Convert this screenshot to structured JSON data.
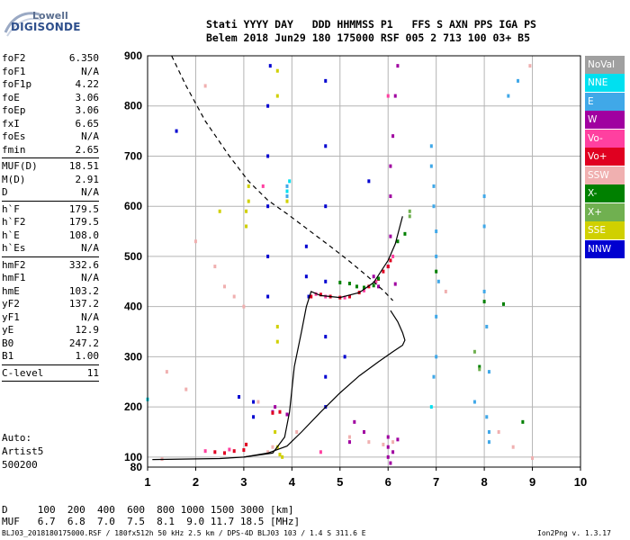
{
  "logo": {
    "line1": "Lowell",
    "line2": "DIGISONDE"
  },
  "header": {
    "line1": "Stati YYYY DAY   DDD HHMMSS P1   FFS S AXN PPS IGA PS",
    "line2": "Belem 2018 Jun29 180 175000 RSF 005 2 713 100 03+ B5"
  },
  "params": [
    {
      "name": "foF2",
      "value": "6.350"
    },
    {
      "name": "foF1",
      "value": "N/A"
    },
    {
      "name": "foF1p",
      "value": "4.22"
    },
    {
      "name": "foE",
      "value": "3.06"
    },
    {
      "name": "foEp",
      "value": "3.06"
    },
    {
      "name": "fxI",
      "value": "6.65"
    },
    {
      "name": "foEs",
      "value": "N/A"
    },
    {
      "name": "fmin",
      "value": "2.65"
    },
    {
      "sep": true
    },
    {
      "name": "MUF(D)",
      "value": "18.51"
    },
    {
      "name": "M(D)",
      "value": "2.91"
    },
    {
      "name": "D",
      "value": "N/A"
    },
    {
      "sep": true
    },
    {
      "name": "h`F",
      "value": "179.5"
    },
    {
      "name": "h`F2",
      "value": "179.5"
    },
    {
      "name": "h`E",
      "value": "108.0"
    },
    {
      "name": "h`Es",
      "value": "N/A"
    },
    {
      "sep": true
    },
    {
      "name": "hmF2",
      "value": "332.6"
    },
    {
      "name": "hmF1",
      "value": "N/A"
    },
    {
      "name": "hmE",
      "value": "103.2"
    },
    {
      "name": "yF2",
      "value": "137.2"
    },
    {
      "name": "yF1",
      "value": "N/A"
    },
    {
      "name": "yE",
      "value": "12.9"
    },
    {
      "name": "B0",
      "value": "247.2"
    },
    {
      "name": "B1",
      "value": "1.00"
    },
    {
      "sep": true
    },
    {
      "name": "C-level",
      "value": "11"
    },
    {
      "sep": true
    }
  ],
  "auto": {
    "line1": "Auto:",
    "line2": "Artist5",
    "line3": "500200"
  },
  "footer": {
    "row1": "D     100  200  400  600  800 1000 1500 3000 [km]",
    "row2": "MUF   6.7  6.8  7.0  7.5  8.1  9.0 11.7 18.5 [MHz]",
    "file": "BLJ03_2018180175000.RSF / 180fx512h 50 kHz 2.5 km / DPS-4D BLJ03 103 / 1.4 S 311.6 E",
    "version": "Ion2Png v. 1.3.17"
  },
  "legend": [
    {
      "label": "NoVal",
      "color": "#a0a0a0"
    },
    {
      "label": "NNE",
      "color": "#00e0f0"
    },
    {
      "label": "E",
      "color": "#40a8e8"
    },
    {
      "label": "W",
      "color": "#a000a0"
    },
    {
      "label": "Vo-",
      "color": "#ff40a0"
    },
    {
      "label": "Vo+",
      "color": "#e00020"
    },
    {
      "label": "SSW",
      "color": "#f0b0b0"
    },
    {
      "label": "X-",
      "color": "#008000"
    },
    {
      "label": "X+",
      "color": "#70b050"
    },
    {
      "label": "SSE",
      "color": "#d0d000"
    },
    {
      "label": "NNW",
      "color": "#0000d0"
    }
  ],
  "chart_data": {
    "type": "scatter",
    "title": "",
    "xlabel": "",
    "ylabel": "",
    "xlim": [
      1,
      10
    ],
    "ylim": [
      80,
      900
    ],
    "x_ticks": [
      "1",
      "2",
      "3",
      "4",
      "5",
      "6",
      "7",
      "8",
      "9",
      "10"
    ],
    "y_ticks": [
      "80",
      "100",
      "200",
      "300",
      "400",
      "500",
      "600",
      "700",
      "800",
      "900"
    ],
    "grid": true,
    "series": [
      {
        "name": "profile",
        "style": "solid-line",
        "points": [
          [
            1.1,
            95
          ],
          [
            2.5,
            97
          ],
          [
            3.0,
            100
          ],
          [
            3.5,
            108
          ],
          [
            3.9,
            122
          ],
          [
            4.2,
            150
          ],
          [
            4.6,
            190
          ],
          [
            5.0,
            228
          ],
          [
            5.4,
            262
          ],
          [
            5.8,
            290
          ],
          [
            6.1,
            310
          ],
          [
            6.3,
            323
          ],
          [
            6.35,
            333
          ],
          [
            6.3,
            348
          ],
          [
            6.2,
            370
          ],
          [
            6.05,
            392
          ]
        ]
      },
      {
        "name": "virtual-trace",
        "style": "solid-line",
        "points": [
          [
            3.0,
            100
          ],
          [
            3.6,
            108
          ],
          [
            3.85,
            140
          ],
          [
            3.95,
            190
          ],
          [
            4.05,
            280
          ],
          [
            4.2,
            350
          ],
          [
            4.3,
            400
          ],
          [
            4.4,
            430
          ],
          [
            4.6,
            422
          ],
          [
            5.0,
            418
          ],
          [
            5.4,
            428
          ],
          [
            5.7,
            448
          ],
          [
            6.0,
            492
          ],
          [
            6.15,
            525
          ],
          [
            6.3,
            580
          ]
        ]
      },
      {
        "name": "MUF-curve",
        "style": "dashed-line",
        "points": [
          [
            1.5,
            900
          ],
          [
            1.8,
            840
          ],
          [
            2.2,
            770
          ],
          [
            2.7,
            700
          ],
          [
            3.1,
            650
          ],
          [
            3.5,
            612
          ],
          [
            3.9,
            585
          ],
          [
            4.3,
            556
          ],
          [
            4.8,
            520
          ],
          [
            5.2,
            490
          ],
          [
            5.6,
            458
          ],
          [
            5.9,
            432
          ],
          [
            6.1,
            412
          ]
        ]
      },
      {
        "name": "NNW",
        "color": "#0000d0",
        "points": [
          [
            3.5,
            420
          ],
          [
            3.5,
            500
          ],
          [
            3.5,
            600
          ],
          [
            3.5,
            700
          ],
          [
            3.5,
            800
          ],
          [
            3.55,
            880
          ],
          [
            4.7,
            200
          ],
          [
            4.7,
            260
          ],
          [
            4.7,
            340
          ],
          [
            4.7,
            450
          ],
          [
            4.7,
            600
          ],
          [
            4.7,
            720
          ],
          [
            4.7,
            850
          ],
          [
            4.3,
            460
          ],
          [
            4.3,
            520
          ],
          [
            4.35,
            420
          ],
          [
            3.2,
            180
          ],
          [
            3.2,
            210
          ],
          [
            2.9,
            220
          ],
          [
            1.6,
            750
          ],
          [
            5.6,
            650
          ],
          [
            5.1,
            300
          ]
        ]
      },
      {
        "name": "W",
        "color": "#a000a0",
        "points": [
          [
            6.0,
            480
          ],
          [
            6.05,
            540
          ],
          [
            6.05,
            620
          ],
          [
            6.05,
            680
          ],
          [
            6.1,
            740
          ],
          [
            6.15,
            820
          ],
          [
            6.2,
            880
          ],
          [
            6.0,
            140
          ],
          [
            6.0,
            120
          ],
          [
            6.0,
            100
          ],
          [
            6.05,
            88
          ],
          [
            6.1,
            110
          ],
          [
            6.2,
            135
          ],
          [
            3.65,
            200
          ],
          [
            3.6,
            190
          ],
          [
            3.9,
            185
          ],
          [
            5.3,
            170
          ],
          [
            5.5,
            150
          ],
          [
            5.2,
            130
          ],
          [
            5.7,
            460
          ],
          [
            5.8,
            440
          ],
          [
            6.15,
            445
          ]
        ]
      },
      {
        "name": "E",
        "color": "#40a8e8",
        "points": [
          [
            6.9,
            720
          ],
          [
            6.9,
            680
          ],
          [
            6.95,
            640
          ],
          [
            6.95,
            600
          ],
          [
            7.0,
            550
          ],
          [
            7.0,
            500
          ],
          [
            7.05,
            450
          ],
          [
            7.0,
            380
          ],
          [
            7.0,
            300
          ],
          [
            6.95,
            260
          ],
          [
            8.0,
            620
          ],
          [
            8.0,
            560
          ],
          [
            8.0,
            430
          ],
          [
            8.05,
            360
          ],
          [
            8.1,
            270
          ],
          [
            8.05,
            180
          ],
          [
            8.1,
            150
          ],
          [
            8.1,
            130
          ],
          [
            7.8,
            210
          ],
          [
            8.5,
            820
          ],
          [
            8.7,
            850
          ],
          [
            3.9,
            620
          ],
          [
            3.9,
            640
          ]
        ]
      },
      {
        "name": "Vo+",
        "color": "#e00020",
        "points": [
          [
            4.4,
            420
          ],
          [
            4.6,
            424
          ],
          [
            4.8,
            420
          ],
          [
            5.0,
            418
          ],
          [
            5.2,
            420
          ],
          [
            5.4,
            428
          ],
          [
            5.6,
            440
          ],
          [
            5.8,
            455
          ],
          [
            5.9,
            470
          ],
          [
            6.0,
            480
          ],
          [
            6.05,
            492
          ],
          [
            2.4,
            110
          ],
          [
            2.6,
            108
          ],
          [
            2.8,
            112
          ],
          [
            3.0,
            114
          ],
          [
            3.05,
            125
          ],
          [
            3.6,
            188
          ],
          [
            3.75,
            190
          ]
        ]
      },
      {
        "name": "Vo-",
        "color": "#ff40a0",
        "points": [
          [
            4.5,
            425
          ],
          [
            4.7,
            420
          ],
          [
            5.1,
            418
          ],
          [
            5.5,
            432
          ],
          [
            5.75,
            450
          ],
          [
            6.1,
            500
          ],
          [
            6.0,
            820
          ],
          [
            2.2,
            112
          ],
          [
            2.7,
            115
          ],
          [
            3.4,
            640
          ],
          [
            4.6,
            110
          ]
        ]
      },
      {
        "name": "X-",
        "color": "#008000",
        "points": [
          [
            5.0,
            448
          ],
          [
            5.2,
            446
          ],
          [
            5.35,
            440
          ],
          [
            5.5,
            438
          ],
          [
            5.7,
            442
          ],
          [
            5.8,
            456
          ],
          [
            6.2,
            530
          ],
          [
            6.35,
            545
          ],
          [
            7.0,
            470
          ],
          [
            8.0,
            410
          ],
          [
            8.4,
            405
          ],
          [
            8.8,
            170
          ],
          [
            7.9,
            280
          ]
        ]
      },
      {
        "name": "X+",
        "color": "#70b050",
        "points": [
          [
            6.45,
            590
          ],
          [
            6.45,
            580
          ],
          [
            7.8,
            310
          ],
          [
            7.9,
            275
          ]
        ]
      },
      {
        "name": "SSE",
        "color": "#d0d000",
        "points": [
          [
            3.05,
            560
          ],
          [
            3.05,
            590
          ],
          [
            3.1,
            610
          ],
          [
            3.1,
            640
          ],
          [
            3.7,
            870
          ],
          [
            3.7,
            820
          ],
          [
            3.7,
            360
          ],
          [
            3.7,
            330
          ],
          [
            3.65,
            150
          ],
          [
            3.7,
            120
          ],
          [
            3.75,
            105
          ],
          [
            3.8,
            100
          ],
          [
            3.9,
            610
          ],
          [
            2.5,
            590
          ]
        ]
      },
      {
        "name": "SSW",
        "color": "#f0b0b0",
        "points": [
          [
            1.3,
            96
          ],
          [
            2.0,
            530
          ],
          [
            2.2,
            840
          ],
          [
            2.4,
            480
          ],
          [
            2.6,
            440
          ],
          [
            2.8,
            420
          ],
          [
            3.0,
            400
          ],
          [
            1.4,
            270
          ],
          [
            1.8,
            235
          ],
          [
            3.3,
            210
          ],
          [
            3.6,
            120
          ],
          [
            3.5,
            110
          ],
          [
            4.1,
            150
          ],
          [
            5.2,
            140
          ],
          [
            5.6,
            130
          ],
          [
            5.9,
            125
          ],
          [
            6.1,
            130
          ],
          [
            7.2,
            430
          ],
          [
            8.3,
            150
          ],
          [
            8.6,
            120
          ],
          [
            8.95,
            880
          ],
          [
            9.0,
            98
          ]
        ]
      },
      {
        "name": "NNE",
        "color": "#00e0f0",
        "points": [
          [
            1.0,
            215
          ],
          [
            3.9,
            630
          ],
          [
            3.95,
            650
          ],
          [
            6.9,
            200
          ]
        ]
      }
    ]
  }
}
